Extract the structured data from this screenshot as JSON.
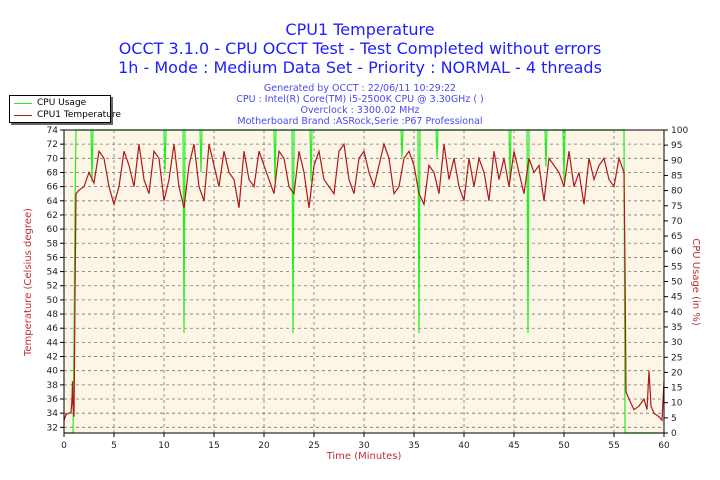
{
  "header": {
    "title1": "CPU1 Temperature",
    "title2": "OCCT 3.1.0 - CPU OCCT Test - Test Completed without errors",
    "title3": "1h - Mode : Medium Data Set - Priority : NORMAL - 4 threads",
    "info": [
      "Generated by OCCT : 22/06/11 10:29:22",
      "CPU : Intel(R) Core(TM) i5-2500K CPU @ 3.30GHz (  )",
      "Overclock : 3300.02 MHz",
      "Motherboard Brand :ASRock,Serie :P67 Professional"
    ]
  },
  "chart_data": {
    "type": "line",
    "title": "CPU1 Temperature",
    "xlabel": "Time (Minutes)",
    "ylabel_left": "Temperature (Celsius degree)",
    "ylabel_right": "CPU Usage (in %)",
    "xlim": [
      0,
      60
    ],
    "ylim_left": [
      31.2,
      74
    ],
    "ylim_right": [
      0,
      100
    ],
    "x_ticks": [
      0,
      5,
      10,
      15,
      20,
      25,
      30,
      35,
      40,
      45,
      50,
      55,
      60
    ],
    "y_left_ticks": [
      32,
      34,
      36,
      38,
      40,
      42,
      44,
      46,
      48,
      50,
      52,
      54,
      56,
      58,
      60,
      62,
      64,
      66,
      68,
      70,
      72,
      74
    ],
    "y_right_ticks": [
      0,
      5,
      10,
      15,
      20,
      25,
      30,
      35,
      40,
      45,
      50,
      55,
      60,
      65,
      70,
      75,
      80,
      85,
      90,
      95,
      100
    ],
    "grid": true,
    "legend_position": "top-left",
    "plot_background": "#fdf6e6",
    "series": [
      {
        "name": "CPU Usage",
        "axis": "right",
        "color": "#22ee22",
        "points": [
          [
            0,
            0
          ],
          [
            0.9,
            0
          ],
          [
            1.0,
            30
          ],
          [
            1.1,
            75
          ],
          [
            1.2,
            100
          ],
          [
            2.7,
            100
          ],
          [
            2.8,
            83
          ],
          [
            2.9,
            100
          ],
          [
            10,
            100
          ],
          [
            10.1,
            86
          ],
          [
            10.2,
            100
          ],
          [
            11.9,
            100
          ],
          [
            12,
            33
          ],
          [
            12.1,
            100
          ],
          [
            13.6,
            100
          ],
          [
            13.7,
            86
          ],
          [
            13.8,
            100
          ],
          [
            21,
            100
          ],
          [
            21.1,
            83
          ],
          [
            21.2,
            100
          ],
          [
            22.8,
            100
          ],
          [
            22.9,
            33
          ],
          [
            23,
            100
          ],
          [
            24.6,
            100
          ],
          [
            24.7,
            83
          ],
          [
            24.8,
            100
          ],
          [
            33.7,
            100
          ],
          [
            33.8,
            91
          ],
          [
            33.9,
            100
          ],
          [
            35.4,
            100
          ],
          [
            35.5,
            33
          ],
          [
            35.6,
            100
          ],
          [
            37.2,
            100
          ],
          [
            37.3,
            91
          ],
          [
            37.4,
            100
          ],
          [
            44.5,
            100
          ],
          [
            44.6,
            83
          ],
          [
            44.7,
            100
          ],
          [
            46.3,
            100
          ],
          [
            46.4,
            33
          ],
          [
            46.5,
            100
          ],
          [
            48.1,
            100
          ],
          [
            48.2,
            88
          ],
          [
            48.3,
            100
          ],
          [
            49.9,
            100
          ],
          [
            50,
            83
          ],
          [
            50.1,
            100
          ],
          [
            56,
            100
          ],
          [
            56.1,
            0
          ],
          [
            60,
            0
          ]
        ]
      },
      {
        "name": "CPU1 Temperature",
        "axis": "left",
        "color": "#b01818",
        "points": [
          [
            0,
            33
          ],
          [
            0.2,
            33.8
          ],
          [
            0.5,
            34
          ],
          [
            0.7,
            34.1
          ],
          [
            0.8,
            36
          ],
          [
            0.85,
            38.5
          ],
          [
            0.9,
            35
          ],
          [
            1.0,
            33.5
          ],
          [
            1.1,
            50
          ],
          [
            1.2,
            65
          ],
          [
            1.5,
            65.5
          ],
          [
            2,
            66
          ],
          [
            2.5,
            68
          ],
          [
            3,
            66.5
          ],
          [
            3.5,
            71
          ],
          [
            4,
            70
          ],
          [
            4.5,
            66
          ],
          [
            5,
            63.5
          ],
          [
            5.5,
            66
          ],
          [
            6,
            71
          ],
          [
            6.5,
            69
          ],
          [
            7,
            66
          ],
          [
            7.5,
            72
          ],
          [
            8,
            67
          ],
          [
            8.5,
            65
          ],
          [
            9,
            71
          ],
          [
            9.5,
            70
          ],
          [
            10,
            64
          ],
          [
            10.5,
            67
          ],
          [
            11,
            72
          ],
          [
            11.5,
            66
          ],
          [
            12,
            63
          ],
          [
            12.5,
            69
          ],
          [
            13,
            72
          ],
          [
            13.5,
            66
          ],
          [
            14,
            64
          ],
          [
            14.5,
            72
          ],
          [
            15,
            69
          ],
          [
            15.5,
            66
          ],
          [
            16,
            71
          ],
          [
            16.5,
            68
          ],
          [
            17,
            67
          ],
          [
            17.5,
            63
          ],
          [
            18,
            71
          ],
          [
            18.5,
            67
          ],
          [
            19,
            66
          ],
          [
            19.5,
            71
          ],
          [
            20,
            69
          ],
          [
            20.5,
            67
          ],
          [
            21,
            65
          ],
          [
            21.5,
            71
          ],
          [
            22,
            70
          ],
          [
            22.5,
            66
          ],
          [
            23,
            65
          ],
          [
            23.5,
            71
          ],
          [
            24,
            68
          ],
          [
            24.5,
            63
          ],
          [
            25,
            69
          ],
          [
            25.5,
            71
          ],
          [
            26,
            67
          ],
          [
            26.5,
            66
          ],
          [
            27,
            65
          ],
          [
            27.5,
            71
          ],
          [
            28,
            72
          ],
          [
            28.5,
            67
          ],
          [
            29,
            65
          ],
          [
            29.5,
            70
          ],
          [
            30,
            71
          ],
          [
            30.5,
            68
          ],
          [
            31,
            66
          ],
          [
            31.5,
            69
          ],
          [
            32,
            72
          ],
          [
            32.5,
            70
          ],
          [
            33,
            65
          ],
          [
            33.5,
            66
          ],
          [
            34,
            70
          ],
          [
            34.5,
            71
          ],
          [
            35,
            69
          ],
          [
            35.5,
            65
          ],
          [
            36,
            63.5
          ],
          [
            36.5,
            69
          ],
          [
            37,
            68
          ],
          [
            37.5,
            65
          ],
          [
            38,
            72
          ],
          [
            38.5,
            67
          ],
          [
            39,
            70
          ],
          [
            39.5,
            66
          ],
          [
            40,
            64
          ],
          [
            40.5,
            70
          ],
          [
            41,
            66
          ],
          [
            41.5,
            70
          ],
          [
            42,
            68
          ],
          [
            42.5,
            64
          ],
          [
            43,
            71
          ],
          [
            43.5,
            67
          ],
          [
            44,
            70
          ],
          [
            44.5,
            66
          ],
          [
            45,
            71
          ],
          [
            45.5,
            68
          ],
          [
            46,
            65
          ],
          [
            46.5,
            70
          ],
          [
            47,
            68
          ],
          [
            47.5,
            69
          ],
          [
            48,
            64
          ],
          [
            48.5,
            70
          ],
          [
            49,
            69
          ],
          [
            49.5,
            68
          ],
          [
            50,
            66
          ],
          [
            50.5,
            71
          ],
          [
            51,
            66
          ],
          [
            51.5,
            68
          ],
          [
            52,
            63.5
          ],
          [
            52.5,
            70
          ],
          [
            53,
            67
          ],
          [
            53.5,
            69
          ],
          [
            54,
            70
          ],
          [
            54.5,
            67
          ],
          [
            55,
            66
          ],
          [
            55.5,
            70
          ],
          [
            56,
            68
          ],
          [
            56.1,
            55
          ],
          [
            56.2,
            37
          ],
          [
            56.5,
            36
          ],
          [
            57,
            34.5
          ],
          [
            57.5,
            35
          ],
          [
            58,
            36
          ],
          [
            58.3,
            34.5
          ],
          [
            58.5,
            40
          ],
          [
            58.7,
            35
          ],
          [
            59,
            34
          ],
          [
            59.5,
            33.5
          ],
          [
            59.8,
            33
          ],
          [
            60,
            38.5
          ]
        ]
      }
    ]
  }
}
